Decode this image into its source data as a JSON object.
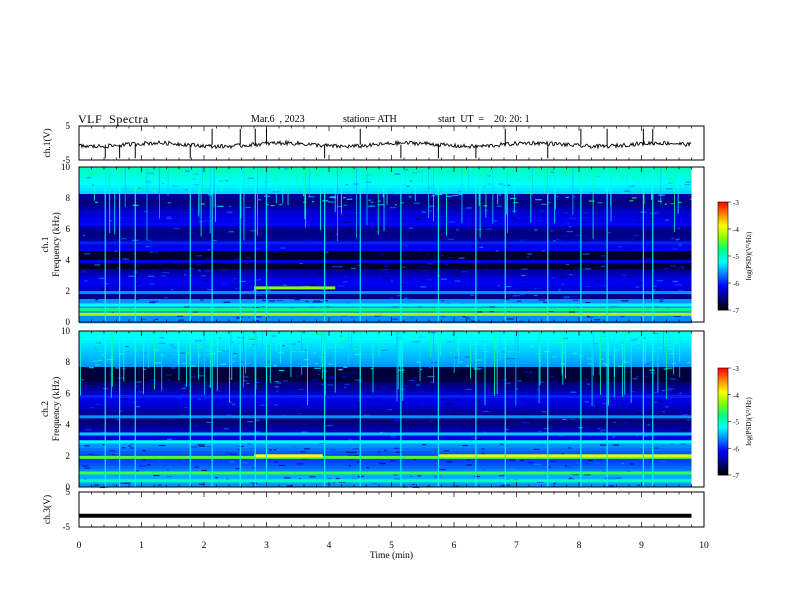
{
  "header": {
    "title": "VLF  Spectra",
    "date": "Mar.6  , 2023",
    "station": "station= ATH",
    "start": "start  UT  =    20: 20: 1"
  },
  "chart_data": [
    {
      "type": "line",
      "name": "ch1-waveform",
      "ylabel": "ch.1(V)",
      "ylim": [
        -5,
        5
      ],
      "yticks": [
        "5",
        "-5"
      ],
      "xlim": [
        0,
        10
      ],
      "data_end_min": 9.8,
      "baseline_v": -0.5,
      "spike_minutes": [
        0.42,
        0.65,
        0.9,
        1.78,
        2.13,
        2.58,
        2.82,
        3.0,
        3.93,
        4.5,
        5.15,
        5.75,
        6.35,
        6.82,
        7.5,
        8.03,
        8.45,
        9.03,
        9.18
      ]
    },
    {
      "type": "heatmap",
      "name": "ch1-spectrogram",
      "ylabel": "ch.1\nFrequency  (kHz)",
      "ylim": [
        0,
        10
      ],
      "yticks": [
        "0",
        "2",
        "4",
        "6",
        "8",
        "10"
      ],
      "xlim": [
        0,
        10
      ],
      "data_end_min": 9.8,
      "colorbar": {
        "label": "log(PSD)(V²/Hz)",
        "ticks": [
          "-3",
          "-4",
          "-5",
          "-6",
          "-7"
        ],
        "range": [
          -7,
          -3
        ]
      },
      "bands_khz": [
        {
          "f": 0.5,
          "level": -4.2
        },
        {
          "f": 0.8,
          "level": -4.8
        },
        {
          "f": 1.1,
          "level": -5.2
        },
        {
          "f": 1.9,
          "level": -5.6
        },
        {
          "f": 2.2,
          "level": -4.3,
          "from_min": 2.8,
          "to_min": 4.1
        },
        {
          "f": 3.9,
          "level": -6.2
        },
        {
          "f": 5.1,
          "level": -6.0
        },
        {
          "f": 6.3,
          "level": -6.1
        },
        {
          "f": 6.9,
          "level": -6.3
        }
      ],
      "spike_minutes": [
        0.42,
        0.65,
        0.9,
        1.78,
        2.13,
        2.58,
        2.82,
        3.0,
        3.93,
        4.5,
        5.15,
        5.75,
        6.35,
        6.82,
        7.5,
        8.03,
        8.45,
        9.03,
        9.18
      ]
    },
    {
      "type": "heatmap",
      "name": "ch2-spectrogram",
      "ylabel": "ch.2\nFrequency  (kHz)",
      "ylim": [
        0,
        10
      ],
      "yticks": [
        "0",
        "2",
        "4",
        "6",
        "8",
        "10"
      ],
      "xlim": [
        0,
        10
      ],
      "data_end_min": 9.8,
      "colorbar": {
        "label": "log(PSD)(V²/Hz)",
        "ticks": [
          "-3",
          "-4",
          "-5",
          "-6",
          "-7"
        ],
        "range": [
          -7,
          -3
        ]
      },
      "bands_khz": [
        {
          "f": 0.4,
          "level": -5.0
        },
        {
          "f": 0.9,
          "level": -4.6
        },
        {
          "f": 1.9,
          "level": -4.5
        },
        {
          "f": 2.0,
          "level": -3.9,
          "from_min": 2.8,
          "to_min": 3.9
        },
        {
          "f": 2.0,
          "level": -4.0,
          "from_min": 5.75,
          "to_min": 9.8
        },
        {
          "f": 2.9,
          "level": -5.2
        },
        {
          "f": 3.4,
          "level": -5.4
        },
        {
          "f": 4.5,
          "level": -5.6
        },
        {
          "f": 5.8,
          "level": -6.0
        }
      ],
      "spike_minutes": [
        0.42,
        0.65,
        0.9,
        1.78,
        2.13,
        2.58,
        2.82,
        3.0,
        3.93,
        4.5,
        5.15,
        5.75,
        6.35,
        6.82,
        7.5,
        8.03,
        8.45,
        9.03,
        9.18
      ]
    },
    {
      "type": "line",
      "name": "ch3-waveform",
      "ylabel": "ch.3(V)",
      "ylim": [
        -5,
        5
      ],
      "yticks": [
        "5",
        "-5"
      ],
      "xlim": [
        0,
        10
      ],
      "data_end_min": 9.8,
      "baseline_v": -1.8
    }
  ],
  "xaxis": {
    "label": "Time  (min)",
    "ticks": [
      "0",
      "1",
      "2",
      "3",
      "4",
      "5",
      "6",
      "7",
      "8",
      "9",
      "10"
    ]
  },
  "colors": {
    "colormap": [
      "#000000",
      "#000080",
      "#0000ff",
      "#0080ff",
      "#00ffff",
      "#00ff80",
      "#80ff00",
      "#ffff00",
      "#ff8000",
      "#ff0000",
      "#ffffff"
    ]
  }
}
